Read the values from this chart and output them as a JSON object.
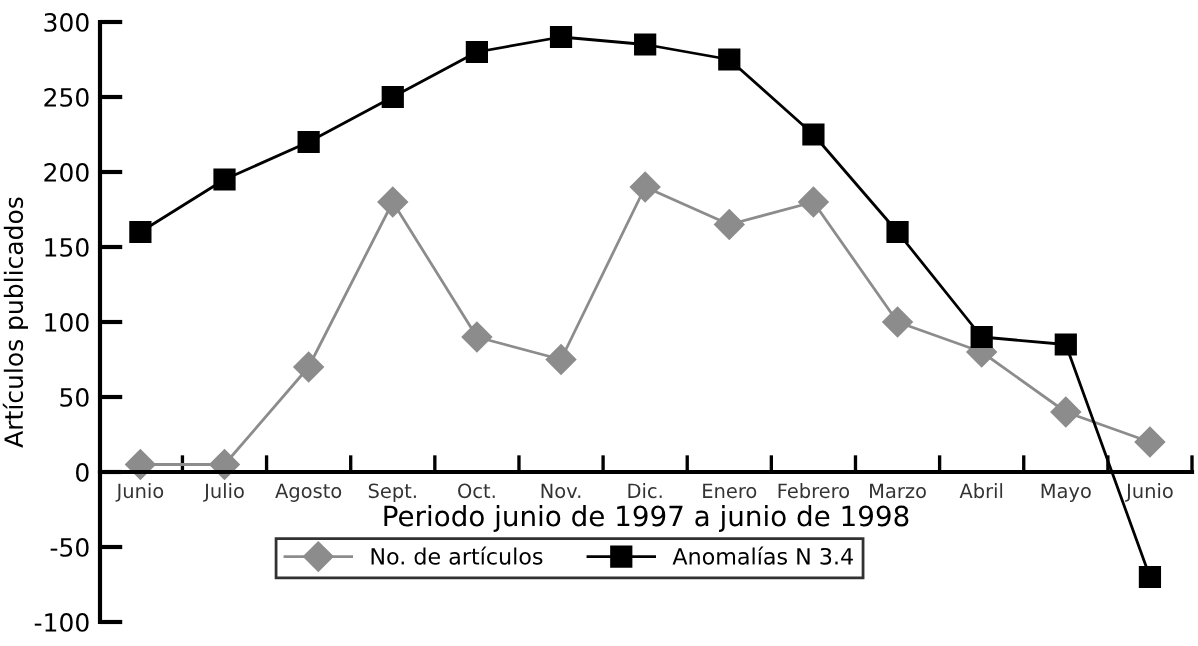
{
  "chart_data": {
    "type": "line",
    "xlabel": "Periodo junio de 1997 a junio de 1998",
    "ylabel": "Artículos publicados",
    "categories": [
      "Junio",
      "Julio",
      "Agosto",
      "Sept.",
      "Oct.",
      "Nov.",
      "Dic.",
      "Enero",
      "Febrero",
      "Marzo",
      "Abril",
      "Mayo",
      "Junio"
    ],
    "series": [
      {
        "name": "No. de artículos",
        "color": "#8c8c8c",
        "marker": "diamond",
        "values": [
          5,
          5,
          70,
          180,
          90,
          75,
          190,
          165,
          180,
          100,
          80,
          40,
          20
        ]
      },
      {
        "name": "Anomalías N 3.4",
        "color": "#000000",
        "marker": "square",
        "values": [
          160,
          195,
          220,
          250,
          280,
          290,
          285,
          275,
          225,
          160,
          90,
          85,
          -70
        ]
      }
    ],
    "ylim": [
      -100,
      300
    ],
    "yticks": [
      -100,
      -50,
      0,
      50,
      100,
      150,
      200,
      250,
      300
    ],
    "grid": false,
    "legend": "bottom",
    "line_style": "solid"
  }
}
